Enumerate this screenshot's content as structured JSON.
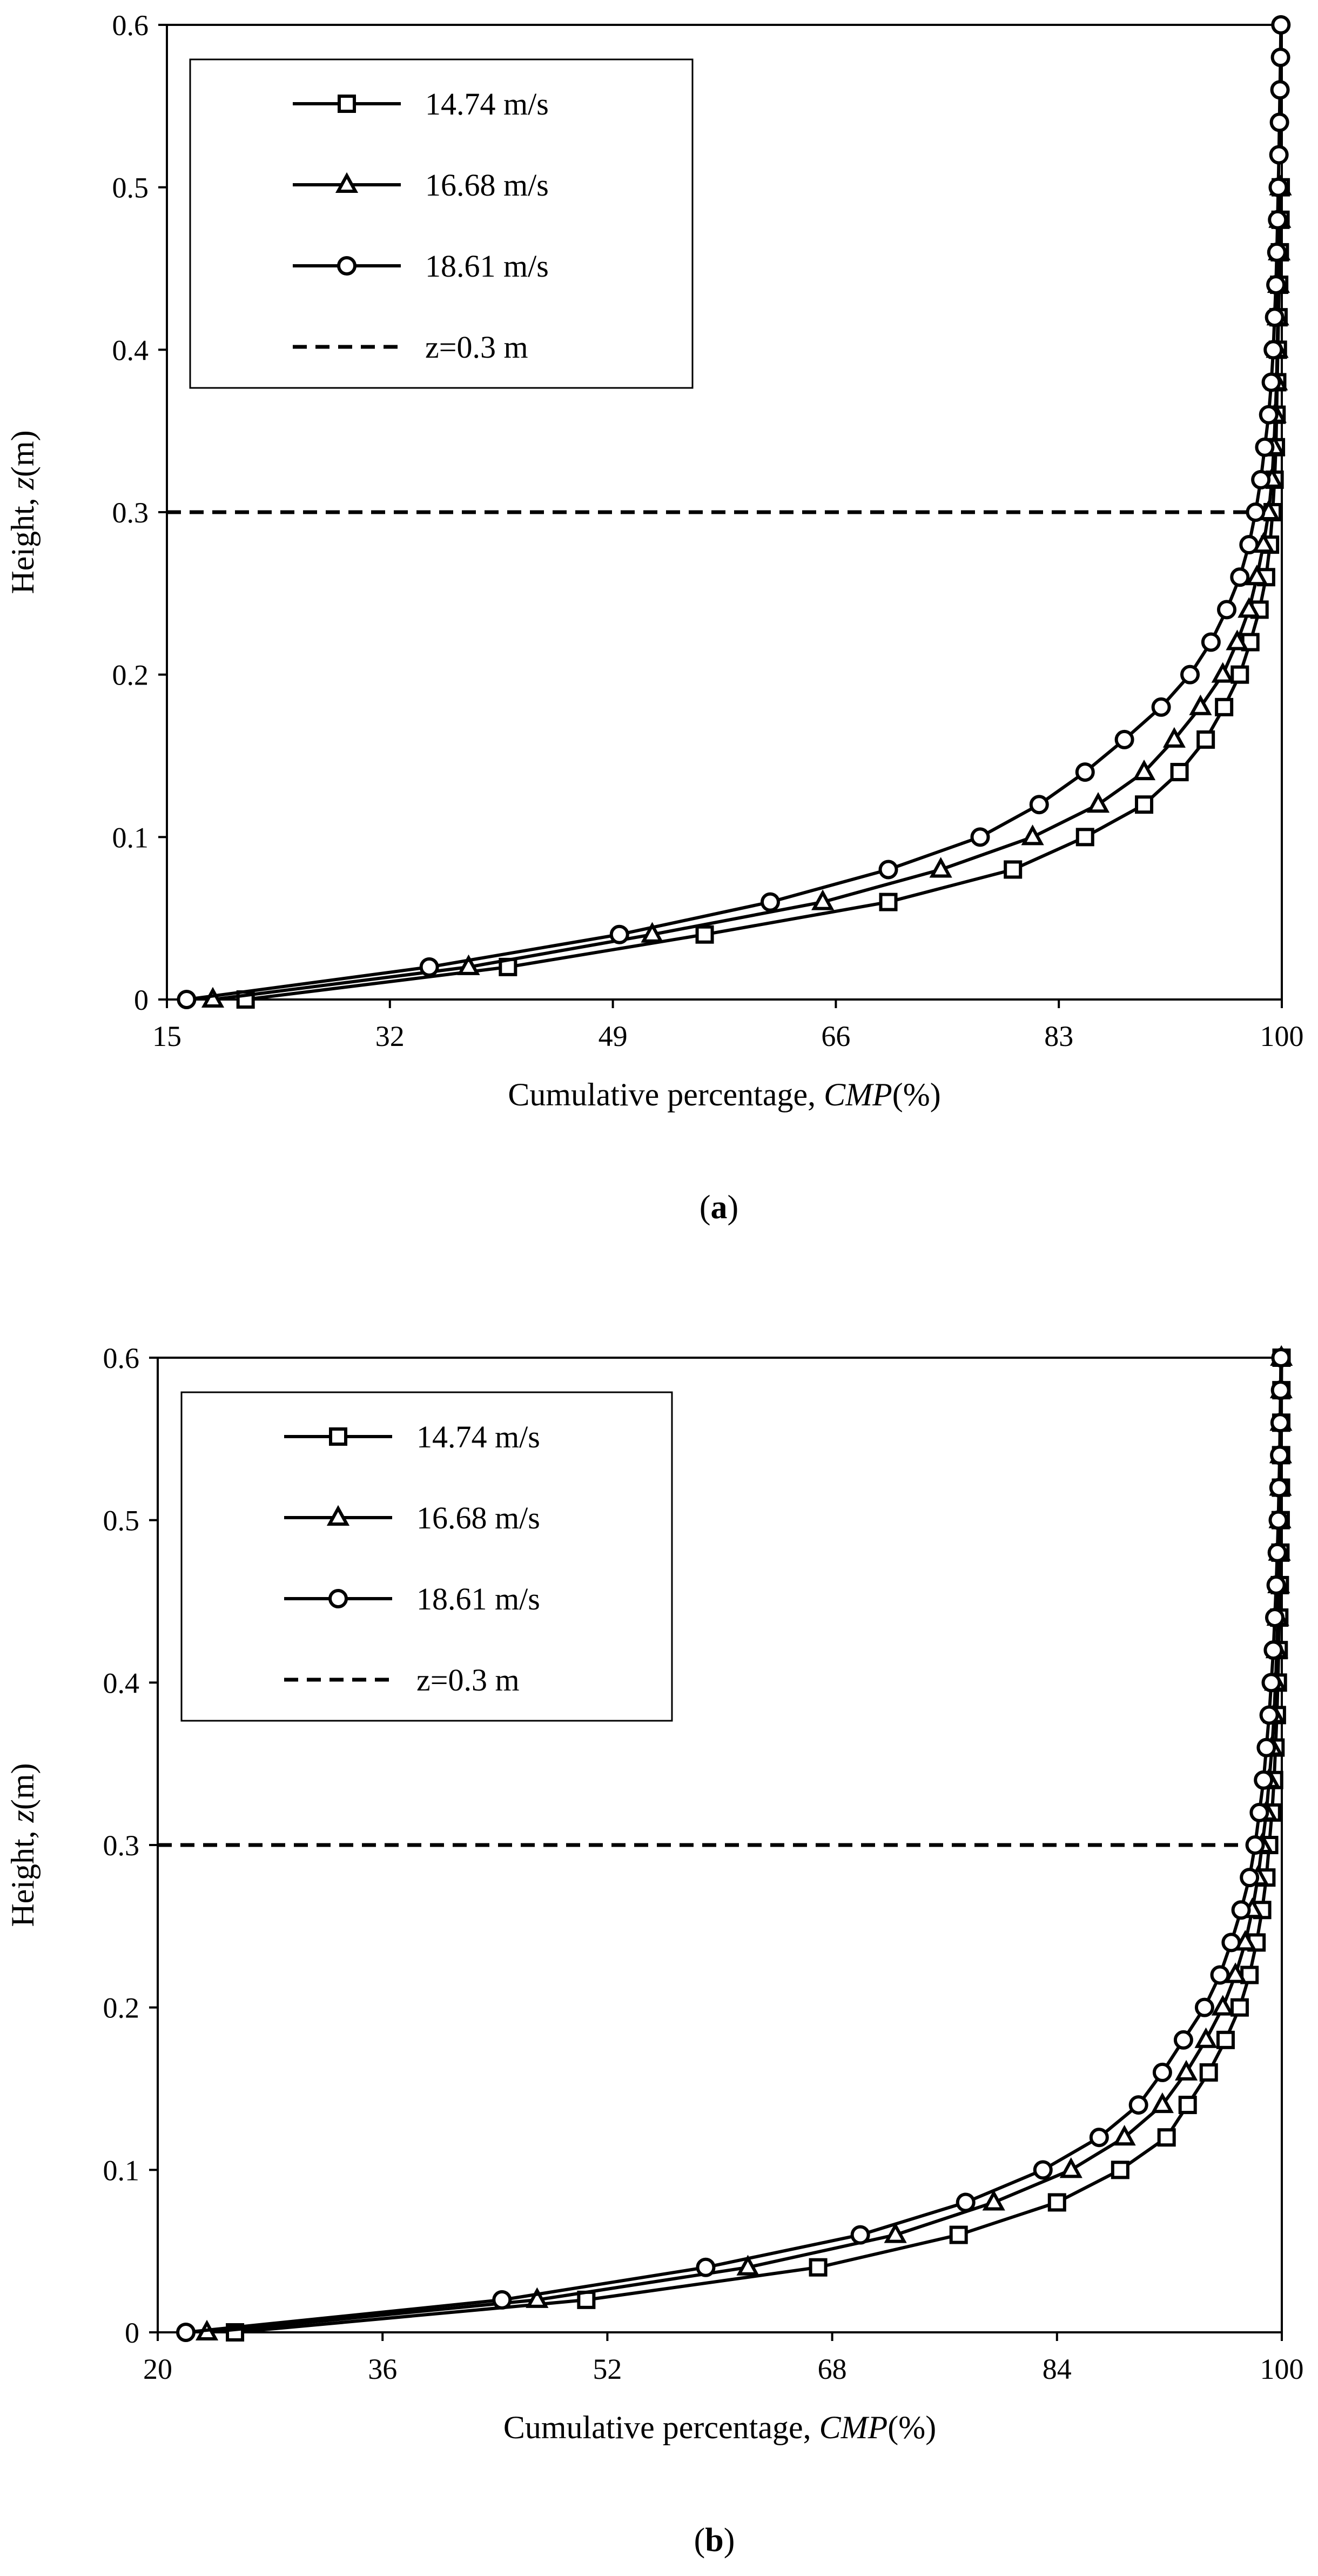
{
  "chart_data": [
    {
      "type": "line",
      "panel_label": "a",
      "xlabel_text": "Cumulative percentage, ",
      "xlabel_italic": "CMP",
      "xlabel_unit": "(%)",
      "ylabel_text": "Height, ",
      "ylabel_italic": "z",
      "ylabel_unit": "(m)",
      "xlim": [
        15,
        100
      ],
      "ylim": [
        0,
        0.6
      ],
      "xticks": [
        "15",
        "32",
        "49",
        "66",
        "83",
        "100"
      ],
      "yticks": [
        "0",
        "0.1",
        "0.2",
        "0.3",
        "0.4",
        "0.5",
        "0.6"
      ],
      "legend_position": "top-left",
      "reference_line": {
        "label": "z=0.3 m",
        "y": 0.3,
        "style": "dashed"
      },
      "series": [
        {
          "name": "14.74 m/s",
          "marker": "square",
          "points": [
            [
              21,
              0
            ],
            [
              41,
              0.02
            ],
            [
              56,
              0.04
            ],
            [
              70,
              0.06
            ],
            [
              79.5,
              0.08
            ],
            [
              85,
              0.1
            ],
            [
              89.5,
              0.12
            ],
            [
              92.2,
              0.14
            ],
            [
              94.2,
              0.16
            ],
            [
              95.6,
              0.18
            ],
            [
              96.8,
              0.2
            ],
            [
              97.6,
              0.22
            ],
            [
              98.3,
              0.24
            ],
            [
              98.8,
              0.26
            ],
            [
              99.1,
              0.28
            ],
            [
              99.3,
              0.3
            ],
            [
              99.45,
              0.32
            ],
            [
              99.55,
              0.34
            ],
            [
              99.6,
              0.36
            ],
            [
              99.65,
              0.38
            ],
            [
              99.7,
              0.4
            ],
            [
              99.75,
              0.42
            ],
            [
              99.8,
              0.44
            ],
            [
              99.85,
              0.46
            ],
            [
              99.9,
              0.48
            ],
            [
              99.92,
              0.5
            ]
          ]
        },
        {
          "name": "16.68 m/s",
          "marker": "triangle",
          "points": [
            [
              18.5,
              0
            ],
            [
              38,
              0.02
            ],
            [
              52,
              0.04
            ],
            [
              65,
              0.06
            ],
            [
              74,
              0.08
            ],
            [
              81,
              0.1
            ],
            [
              86,
              0.12
            ],
            [
              89.5,
              0.14
            ],
            [
              91.8,
              0.16
            ],
            [
              93.8,
              0.18
            ],
            [
              95.5,
              0.2
            ],
            [
              96.6,
              0.22
            ],
            [
              97.5,
              0.24
            ],
            [
              98.1,
              0.26
            ],
            [
              98.6,
              0.28
            ],
            [
              99,
              0.3
            ],
            [
              99.25,
              0.32
            ],
            [
              99.4,
              0.34
            ],
            [
              99.5,
              0.36
            ],
            [
              99.6,
              0.38
            ],
            [
              99.65,
              0.4
            ],
            [
              99.7,
              0.42
            ],
            [
              99.75,
              0.44
            ],
            [
              99.8,
              0.46
            ],
            [
              99.85,
              0.48
            ],
            [
              99.9,
              0.5
            ]
          ]
        },
        {
          "name": "18.61 m/s",
          "marker": "circle",
          "points": [
            [
              16.5,
              0
            ],
            [
              35,
              0.02
            ],
            [
              49.5,
              0.04
            ],
            [
              61,
              0.06
            ],
            [
              70,
              0.08
            ],
            [
              77,
              0.1
            ],
            [
              81.5,
              0.12
            ],
            [
              85,
              0.14
            ],
            [
              88,
              0.16
            ],
            [
              90.8,
              0.18
            ],
            [
              93,
              0.2
            ],
            [
              94.6,
              0.22
            ],
            [
              95.8,
              0.24
            ],
            [
              96.8,
              0.26
            ],
            [
              97.5,
              0.28
            ],
            [
              98,
              0.3
            ],
            [
              98.4,
              0.32
            ],
            [
              98.7,
              0.34
            ],
            [
              99,
              0.36
            ],
            [
              99.2,
              0.38
            ],
            [
              99.35,
              0.4
            ],
            [
              99.45,
              0.42
            ],
            [
              99.55,
              0.44
            ],
            [
              99.62,
              0.46
            ],
            [
              99.68,
              0.48
            ],
            [
              99.73,
              0.5
            ],
            [
              99.78,
              0.52
            ],
            [
              99.82,
              0.54
            ],
            [
              99.86,
              0.56
            ],
            [
              99.9,
              0.58
            ],
            [
              99.93,
              0.6
            ]
          ]
        }
      ]
    },
    {
      "type": "line",
      "panel_label": "b",
      "xlabel_text": "Cumulative percentage, ",
      "xlabel_italic": "CMP",
      "xlabel_unit": "(%)",
      "ylabel_text": "Height, ",
      "ylabel_italic": "z",
      "ylabel_unit": "(m)",
      "xlim": [
        20,
        100
      ],
      "ylim": [
        0,
        0.6
      ],
      "xticks": [
        "20",
        "36",
        "52",
        "68",
        "84",
        "100"
      ],
      "yticks": [
        "0",
        "0.1",
        "0.2",
        "0.3",
        "0.4",
        "0.5",
        "0.6"
      ],
      "legend_position": "top-left",
      "reference_line": {
        "label": "z=0.3 m",
        "y": 0.3,
        "style": "dashed"
      },
      "series": [
        {
          "name": "14.74 m/s",
          "marker": "square",
          "points": [
            [
              25.5,
              0
            ],
            [
              50.5,
              0.02
            ],
            [
              67,
              0.04
            ],
            [
              77,
              0.06
            ],
            [
              84,
              0.08
            ],
            [
              88.5,
              0.1
            ],
            [
              91.8,
              0.12
            ],
            [
              93.3,
              0.14
            ],
            [
              94.8,
              0.16
            ],
            [
              96,
              0.18
            ],
            [
              97,
              0.2
            ],
            [
              97.7,
              0.22
            ],
            [
              98.2,
              0.24
            ],
            [
              98.6,
              0.26
            ],
            [
              98.9,
              0.28
            ],
            [
              99.1,
              0.3
            ],
            [
              99.3,
              0.32
            ],
            [
              99.45,
              0.34
            ],
            [
              99.55,
              0.36
            ],
            [
              99.65,
              0.38
            ],
            [
              99.72,
              0.4
            ],
            [
              99.78,
              0.42
            ],
            [
              99.82,
              0.44
            ],
            [
              99.86,
              0.46
            ],
            [
              99.9,
              0.48
            ],
            [
              99.92,
              0.5
            ],
            [
              99.94,
              0.52
            ],
            [
              99.95,
              0.54
            ],
            [
              99.96,
              0.56
            ],
            [
              99.97,
              0.58
            ],
            [
              99.98,
              0.6
            ]
          ]
        },
        {
          "name": "16.68 m/s",
          "marker": "triangle",
          "points": [
            [
              23.5,
              0
            ],
            [
              47,
              0.02
            ],
            [
              62,
              0.04
            ],
            [
              72.5,
              0.06
            ],
            [
              79.5,
              0.08
            ],
            [
              85,
              0.1
            ],
            [
              88.8,
              0.12
            ],
            [
              91.5,
              0.14
            ],
            [
              93.2,
              0.16
            ],
            [
              94.6,
              0.18
            ],
            [
              95.8,
              0.2
            ],
            [
              96.7,
              0.22
            ],
            [
              97.4,
              0.24
            ],
            [
              97.9,
              0.26
            ],
            [
              98.3,
              0.28
            ],
            [
              98.6,
              0.3
            ],
            [
              98.9,
              0.32
            ],
            [
              99.1,
              0.34
            ],
            [
              99.3,
              0.36
            ],
            [
              99.45,
              0.38
            ],
            [
              99.55,
              0.4
            ],
            [
              99.65,
              0.42
            ],
            [
              99.72,
              0.44
            ],
            [
              99.78,
              0.46
            ],
            [
              99.83,
              0.48
            ],
            [
              99.87,
              0.5
            ],
            [
              99.9,
              0.52
            ],
            [
              99.92,
              0.54
            ],
            [
              99.94,
              0.56
            ],
            [
              99.96,
              0.58
            ],
            [
              99.97,
              0.6
            ]
          ]
        },
        {
          "name": "18.61 m/s",
          "marker": "circle",
          "points": [
            [
              22,
              0
            ],
            [
              44.5,
              0.02
            ],
            [
              59,
              0.04
            ],
            [
              70,
              0.06
            ],
            [
              77.5,
              0.08
            ],
            [
              83,
              0.1
            ],
            [
              87,
              0.12
            ],
            [
              89.8,
              0.14
            ],
            [
              91.5,
              0.16
            ],
            [
              93,
              0.18
            ],
            [
              94.5,
              0.2
            ],
            [
              95.6,
              0.22
            ],
            [
              96.4,
              0.24
            ],
            [
              97.1,
              0.26
            ],
            [
              97.7,
              0.28
            ],
            [
              98.1,
              0.3
            ],
            [
              98.4,
              0.32
            ],
            [
              98.7,
              0.34
            ],
            [
              98.9,
              0.36
            ],
            [
              99.1,
              0.38
            ],
            [
              99.25,
              0.4
            ],
            [
              99.4,
              0.42
            ],
            [
              99.5,
              0.44
            ],
            [
              99.6,
              0.46
            ],
            [
              99.68,
              0.48
            ],
            [
              99.75,
              0.5
            ],
            [
              99.8,
              0.52
            ],
            [
              99.85,
              0.54
            ],
            [
              99.88,
              0.56
            ],
            [
              99.91,
              0.58
            ],
            [
              99.94,
              0.6
            ]
          ]
        }
      ]
    }
  ]
}
